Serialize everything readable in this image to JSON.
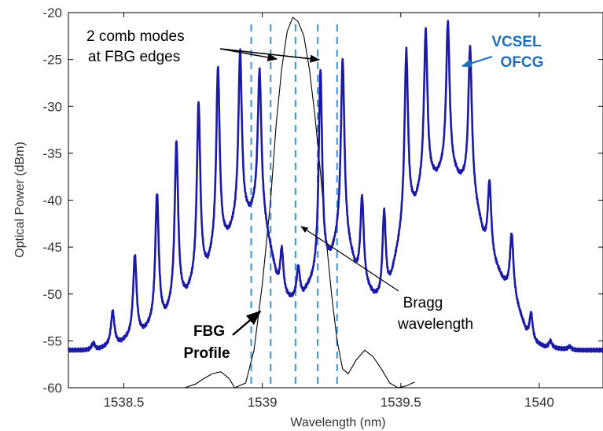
{
  "chart_data": {
    "type": "line",
    "xlabel": "Wavelength (nm)",
    "ylabel": "Optical Power (dBm)",
    "xlim": [
      1538.3,
      1540.23
    ],
    "ylim": [
      -60,
      -20
    ],
    "x_ticks": [
      1538.5,
      1539,
      1539.5,
      1540
    ],
    "x_tick_labels": [
      "1538.5",
      "1539",
      "1539.5",
      "1540"
    ],
    "y_ticks": [
      -20,
      -25,
      -30,
      -35,
      -40,
      -45,
      -50,
      -55,
      -60
    ],
    "y_tick_labels": [
      "-20",
      "-25",
      "-30",
      "-35",
      "-40",
      "-45",
      "-50",
      "-55",
      "-60"
    ],
    "grid": false,
    "colors": {
      "comb": "#1a1aa6",
      "fbg": "#000000",
      "dashed": "#4b9ad6",
      "vcsel_label": "#1f6fb5"
    },
    "series": [
      {
        "label": "VCSEL OFCG",
        "baseline": -56,
        "modes": [
          {
            "x": 1538.39,
            "peak": -55.2,
            "floor": -56.0
          },
          {
            "x": 1538.46,
            "peak": -51.8,
            "floor": -55.5
          },
          {
            "x": 1538.54,
            "peak": -45.8,
            "floor": -54.5
          },
          {
            "x": 1538.62,
            "peak": -39.2,
            "floor": -53.0
          },
          {
            "x": 1538.69,
            "peak": -33.6,
            "floor": -51.0
          },
          {
            "x": 1538.77,
            "peak": -29.5,
            "floor": -48.5
          },
          {
            "x": 1538.84,
            "peak": -25.8,
            "floor": -45.0
          },
          {
            "x": 1538.92,
            "peak": -24.0,
            "floor": -42.0
          },
          {
            "x": 1538.99,
            "peak": -26.0,
            "floor": -40.5
          },
          {
            "x": 1539.07,
            "peak": -45.0,
            "floor": -50.3
          },
          {
            "x": 1539.13,
            "peak": -47.0,
            "floor": -50.5
          },
          {
            "x": 1539.21,
            "peak": -26.0,
            "floor": -48.0
          },
          {
            "x": 1539.29,
            "peak": -24.9,
            "floor": -43.5
          },
          {
            "x": 1539.36,
            "peak": -39.5,
            "floor": -49.0
          },
          {
            "x": 1539.44,
            "peak": -41.0,
            "floor": -51.0
          },
          {
            "x": 1539.52,
            "peak": -23.9,
            "floor": -42.0
          },
          {
            "x": 1539.59,
            "peak": -21.8,
            "floor": -38.0
          },
          {
            "x": 1539.67,
            "peak": -21.0,
            "floor": -36.5
          },
          {
            "x": 1539.75,
            "peak": -23.6,
            "floor": -38.5
          },
          {
            "x": 1539.82,
            "peak": -37.8,
            "floor": -46.0
          },
          {
            "x": 1539.9,
            "peak": -43.5,
            "floor": -50.0
          },
          {
            "x": 1539.97,
            "peak": -52.0,
            "floor": -55.2
          },
          {
            "x": 1540.04,
            "peak": -55.0,
            "floor": -55.8
          },
          {
            "x": 1540.11,
            "peak": -55.6,
            "floor": -55.9
          }
        ]
      },
      {
        "label": "FBG Profile",
        "points": [
          [
            1538.9,
            -60.0
          ],
          [
            1538.88,
            -59.0
          ],
          [
            1538.85,
            -58.3
          ],
          [
            1538.82,
            -58.5
          ],
          [
            1538.79,
            -59.0
          ],
          [
            1538.76,
            -59.6
          ],
          [
            1538.72,
            -60.0
          ],
          [
            1538.7,
            -60.0
          ],
          [
            1538.94,
            -59.5
          ],
          [
            1538.97,
            -56.0
          ],
          [
            1539.0,
            -49.0
          ],
          [
            1539.03,
            -40.0
          ],
          [
            1539.05,
            -32.0
          ],
          [
            1539.07,
            -26.0
          ],
          [
            1539.09,
            -22.0
          ],
          [
            1539.11,
            -20.5
          ],
          [
            1539.13,
            -21.0
          ],
          [
            1539.15,
            -22.5
          ],
          [
            1539.17,
            -26.0
          ],
          [
            1539.19,
            -31.0
          ],
          [
            1539.21,
            -37.0
          ],
          [
            1539.23,
            -44.0
          ],
          [
            1539.25,
            -50.0
          ],
          [
            1539.27,
            -55.0
          ],
          [
            1539.29,
            -58.0
          ],
          [
            1539.31,
            -58.5
          ],
          [
            1539.34,
            -57.0
          ],
          [
            1539.37,
            -56.0
          ],
          [
            1539.4,
            -56.7
          ],
          [
            1539.43,
            -58.0
          ],
          [
            1539.46,
            -59.5
          ],
          [
            1539.49,
            -60.0
          ],
          [
            1539.52,
            -59.8
          ],
          [
            1539.55,
            -59.4
          ]
        ]
      }
    ],
    "dashed_lines_x": [
      1538.96,
      1539.03,
      1539.12,
      1539.2,
      1539.27
    ],
    "annotations": {
      "comb_modes_line1": "2 comb modes",
      "comb_modes_line2": "at FBG edges",
      "vcsel_line1": "VCSEL",
      "vcsel_line2": "OFCG",
      "bragg_line1": "Bragg",
      "bragg_line2": "wavelength",
      "fbg_line1": "FBG",
      "fbg_line2": "Profile"
    }
  }
}
